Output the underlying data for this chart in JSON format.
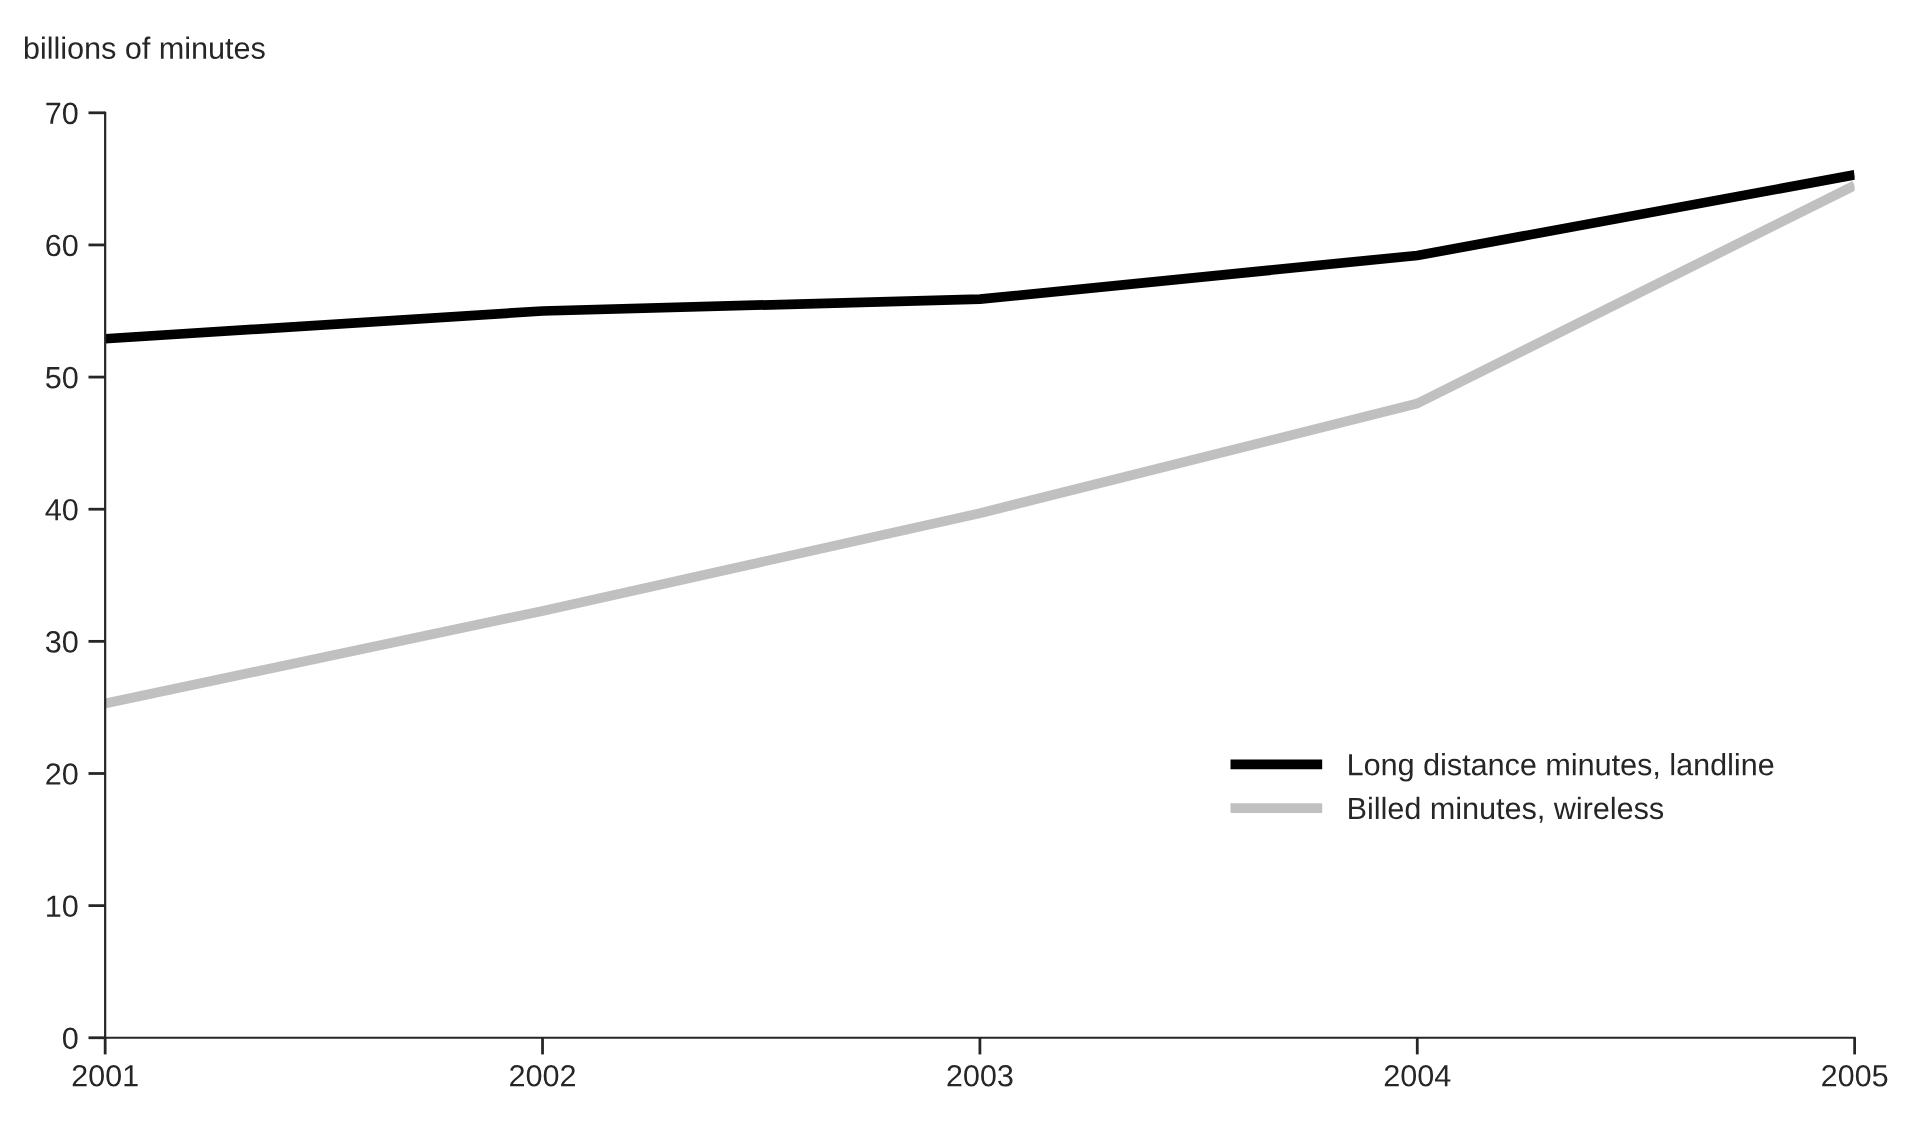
{
  "chart_data": {
    "type": "line",
    "ylabel": "billions of minutes",
    "x": [
      2001,
      2002,
      2003,
      2004,
      2005
    ],
    "series": [
      {
        "name": "Long distance minutes, landline",
        "color": "#000000",
        "values": [
          52.9,
          55.0,
          55.9,
          59.2,
          65.3
        ]
      },
      {
        "name": "Billed minutes, wireless",
        "color": "#c0c0c0",
        "values": [
          25.3,
          32.3,
          39.7,
          48.0,
          64.5
        ]
      }
    ],
    "xlim": [
      2001,
      2005
    ],
    "xticks": [
      2001,
      2002,
      2003,
      2004,
      2005
    ],
    "ylim": [
      0,
      70
    ],
    "yticks": [
      0,
      10,
      20,
      30,
      40,
      50,
      60,
      70
    ],
    "grid": false,
    "legend": "lower right",
    "marker": "none",
    "line_style": "solid"
  }
}
